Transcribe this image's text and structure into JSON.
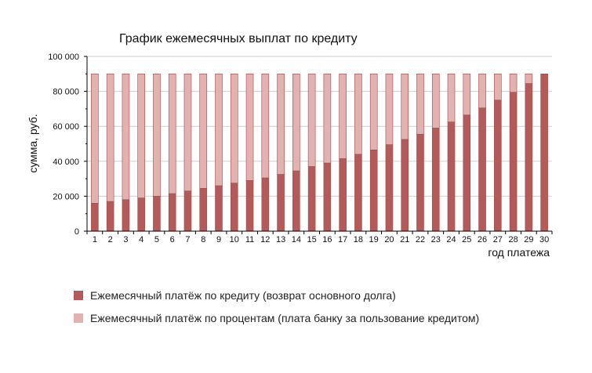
{
  "chart_data": {
    "type": "bar",
    "stacked": true,
    "title": "График ежемесячных выплат по кредиту",
    "xlabel": "год платежа",
    "ylabel": "сумма, руб.",
    "ylim": [
      0,
      100000
    ],
    "y_ticks": [
      0,
      20000,
      40000,
      60000,
      80000,
      100000
    ],
    "y_tick_labels": [
      "0",
      "20 000",
      "40 000",
      "60 000",
      "80 000",
      "100 000"
    ],
    "grid": true,
    "legend_position": "bottom",
    "categories": [
      "1",
      "2",
      "3",
      "4",
      "5",
      "6",
      "7",
      "8",
      "9",
      "10",
      "11",
      "12",
      "13",
      "14",
      "15",
      "16",
      "17",
      "18",
      "19",
      "20",
      "21",
      "22",
      "23",
      "24",
      "25",
      "26",
      "27",
      "28",
      "29",
      "30"
    ],
    "series": [
      {
        "name": "Ежемесячный платёж по кредиту (возврат основного долга)",
        "color": "#b45a5a",
        "values": [
          16000,
          17000,
          18000,
          19000,
          20000,
          21500,
          23000,
          24500,
          26000,
          27500,
          29000,
          30500,
          32500,
          34500,
          37000,
          39000,
          41500,
          44000,
          46500,
          49500,
          52500,
          55500,
          59000,
          62500,
          66500,
          70500,
          75000,
          79500,
          84500,
          90000
        ]
      },
      {
        "name": "Ежемесячный платёж по процентам (плата банку за пользование кредитом)",
        "color": "#e4b1b1",
        "values": [
          74000,
          73000,
          72000,
          71000,
          70000,
          68500,
          67000,
          65500,
          64000,
          62500,
          61000,
          59500,
          57500,
          55500,
          53000,
          51000,
          48500,
          46000,
          43500,
          40500,
          37500,
          34500,
          31000,
          27500,
          23500,
          19500,
          15000,
          10500,
          5500,
          0
        ]
      }
    ]
  }
}
